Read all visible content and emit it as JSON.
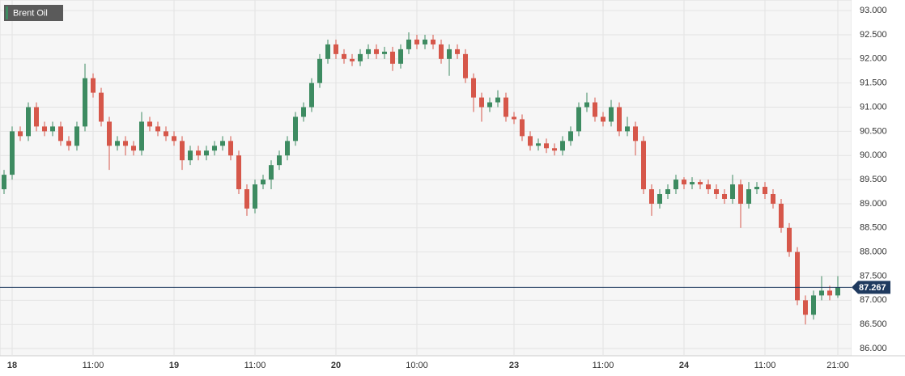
{
  "chart_data": {
    "type": "candlestick",
    "title": "Brent Oil",
    "categories": [
      null,
      "18",
      null,
      null,
      null,
      null,
      null,
      null,
      null,
      null,
      null,
      "11:00",
      null,
      null,
      null,
      null,
      null,
      null,
      null,
      null,
      null,
      "19",
      null,
      null,
      null,
      null,
      null,
      null,
      null,
      null,
      null,
      "11:00",
      null,
      null,
      null,
      null,
      null,
      null,
      null,
      null,
      null,
      "20",
      null,
      null,
      null,
      null,
      null,
      null,
      null,
      null,
      null,
      "10:00",
      null,
      null,
      null,
      null,
      null,
      null,
      null,
      null,
      null,
      null,
      null,
      "23",
      null,
      null,
      null,
      null,
      null,
      null,
      null,
      null,
      null,
      null,
      "11:00",
      null,
      null,
      null,
      null,
      null,
      null,
      null,
      null,
      null,
      "24",
      null,
      null,
      null,
      null,
      null,
      null,
      null,
      null,
      null,
      "11:00",
      null,
      null,
      null,
      null,
      null,
      null,
      null,
      null,
      "21:00"
    ],
    "open": [
      89.3,
      89.6,
      90.5,
      90.4,
      91.0,
      90.6,
      90.5,
      90.6,
      90.3,
      90.2,
      90.6,
      91.6,
      91.3,
      90.7,
      90.2,
      90.3,
      90.2,
      90.1,
      90.7,
      90.6,
      90.5,
      90.4,
      90.3,
      89.9,
      90.1,
      90.0,
      90.1,
      90.2,
      90.3,
      90.0,
      89.3,
      88.9,
      89.4,
      89.5,
      89.8,
      90.0,
      90.3,
      90.8,
      91.0,
      91.5,
      92.0,
      92.3,
      92.1,
      92.0,
      91.95,
      92.1,
      92.2,
      92.1,
      92.15,
      91.9,
      92.2,
      92.4,
      92.3,
      92.4,
      92.3,
      92.0,
      92.2,
      92.1,
      91.6,
      91.2,
      91.0,
      91.1,
      91.2,
      90.8,
      90.75,
      90.4,
      90.2,
      90.25,
      90.15,
      90.1,
      90.3,
      90.5,
      91.0,
      91.1,
      90.8,
      90.7,
      91.0,
      90.5,
      90.6,
      90.3,
      89.3,
      89.0,
      89.2,
      89.3,
      89.5,
      89.4,
      89.45,
      89.4,
      89.3,
      89.2,
      89.1,
      89.4,
      89.0,
      89.3,
      89.35,
      89.2,
      89.0,
      88.5,
      88.0,
      87.0,
      86.7,
      87.1,
      87.2,
      87.1
    ],
    "high": [
      89.7,
      90.6,
      90.6,
      91.1,
      91.1,
      90.7,
      90.7,
      90.7,
      90.4,
      90.7,
      91.9,
      91.7,
      91.4,
      90.8,
      90.4,
      90.4,
      90.3,
      90.9,
      90.8,
      90.7,
      90.6,
      90.5,
      90.4,
      90.2,
      90.2,
      90.2,
      90.3,
      90.4,
      90.4,
      90.1,
      89.4,
      89.5,
      89.6,
      89.9,
      90.1,
      90.4,
      90.9,
      91.1,
      91.6,
      92.1,
      92.4,
      92.4,
      92.2,
      92.1,
      92.2,
      92.3,
      92.3,
      92.25,
      92.25,
      92.3,
      92.55,
      92.5,
      92.5,
      92.5,
      92.4,
      92.3,
      92.3,
      92.2,
      91.7,
      91.3,
      91.2,
      91.35,
      91.3,
      90.9,
      90.85,
      90.5,
      90.35,
      90.35,
      90.25,
      90.4,
      90.6,
      91.1,
      91.3,
      91.2,
      90.9,
      91.15,
      91.1,
      90.8,
      90.7,
      90.4,
      89.4,
      89.3,
      89.4,
      89.6,
      89.55,
      89.55,
      89.5,
      89.5,
      89.4,
      89.3,
      89.6,
      89.5,
      89.45,
      89.45,
      89.45,
      89.3,
      89.1,
      88.6,
      88.1,
      87.1,
      87.2,
      87.5,
      87.3,
      87.5
    ],
    "low": [
      89.2,
      89.5,
      90.3,
      90.3,
      90.5,
      90.4,
      90.4,
      90.2,
      90.1,
      90.1,
      90.5,
      91.2,
      90.6,
      89.7,
      90.1,
      90.0,
      90.0,
      90.0,
      90.5,
      90.4,
      90.3,
      90.2,
      89.7,
      89.8,
      89.9,
      89.9,
      90.0,
      90.1,
      89.9,
      89.2,
      88.75,
      88.8,
      89.3,
      89.3,
      89.7,
      89.9,
      90.2,
      90.7,
      90.9,
      91.4,
      91.9,
      92.0,
      91.9,
      91.85,
      91.85,
      92.0,
      92.0,
      92.0,
      91.75,
      91.8,
      92.1,
      92.2,
      92.2,
      92.2,
      91.9,
      91.65,
      92.0,
      91.5,
      90.9,
      90.7,
      90.9,
      91.0,
      90.7,
      90.65,
      90.3,
      90.1,
      90.1,
      90.05,
      90.0,
      90.0,
      90.2,
      90.4,
      90.9,
      90.7,
      90.6,
      90.6,
      90.4,
      90.4,
      90.0,
      89.2,
      88.75,
      88.9,
      89.1,
      89.2,
      89.3,
      89.3,
      89.3,
      89.2,
      89.1,
      89.0,
      89.0,
      88.5,
      88.9,
      89.2,
      89.1,
      88.9,
      88.4,
      87.9,
      86.9,
      86.5,
      86.6,
      87.0,
      87.0,
      87.05
    ],
    "close": [
      89.6,
      90.5,
      90.4,
      91.0,
      90.6,
      90.5,
      90.6,
      90.3,
      90.2,
      90.6,
      91.6,
      91.3,
      90.7,
      90.2,
      90.3,
      90.2,
      90.1,
      90.7,
      90.6,
      90.5,
      90.4,
      90.3,
      89.9,
      90.1,
      90.0,
      90.1,
      90.2,
      90.3,
      90.0,
      89.3,
      88.9,
      89.4,
      89.5,
      89.8,
      90.0,
      90.3,
      90.8,
      91.0,
      91.5,
      92.0,
      92.3,
      92.1,
      92.0,
      91.95,
      92.1,
      92.2,
      92.1,
      92.15,
      91.9,
      92.2,
      92.4,
      92.3,
      92.4,
      92.3,
      92.0,
      92.2,
      92.1,
      91.6,
      91.2,
      91.0,
      91.1,
      91.2,
      90.8,
      90.75,
      90.4,
      90.2,
      90.25,
      90.15,
      90.1,
      90.3,
      90.5,
      91.0,
      91.1,
      90.8,
      90.7,
      91.0,
      90.5,
      90.6,
      90.3,
      89.3,
      89.0,
      89.2,
      89.3,
      89.5,
      89.4,
      89.45,
      89.4,
      89.3,
      89.2,
      89.1,
      89.4,
      89.0,
      89.3,
      89.35,
      89.2,
      89.0,
      88.5,
      88.0,
      87.0,
      86.7,
      87.1,
      87.2,
      87.1,
      87.267
    ],
    "last_price": 87.267,
    "up_color": "#3d8b61",
    "down_color": "#d6574a",
    "last_color": "#1f3a5f",
    "ylim": [
      85.85,
      93.22
    ],
    "yticks": [
      {
        "value": 86,
        "label": "86.000"
      },
      {
        "value": 86.5,
        "label": "86.500"
      },
      {
        "value": 87,
        "label": "87.000"
      },
      {
        "value": 87.5,
        "label": "87.500"
      },
      {
        "value": 88,
        "label": "88.000"
      },
      {
        "value": 88.5,
        "label": "88.500"
      },
      {
        "value": 89,
        "label": "89.000"
      },
      {
        "value": 89.5,
        "label": "89.500"
      },
      {
        "value": 90,
        "label": "90.000"
      },
      {
        "value": 90.5,
        "label": "90.500"
      },
      {
        "value": 91,
        "label": "91.000"
      },
      {
        "value": 91.5,
        "label": "91.500"
      },
      {
        "value": 92,
        "label": "92.000"
      },
      {
        "value": 92.5,
        "label": "92.500"
      },
      {
        "value": 93,
        "label": "93.000"
      }
    ],
    "grid": true
  }
}
